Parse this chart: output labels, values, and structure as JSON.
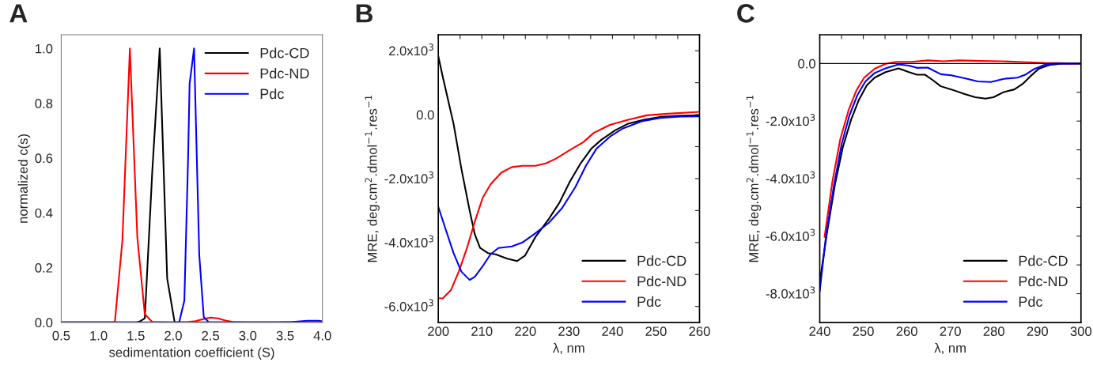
{
  "chart_data": [
    {
      "type": "line",
      "title": "A",
      "xlabel": "sedimentation coefficient (S)",
      "ylabel": "normalized c(s)",
      "xlim": [
        0.5,
        4.0
      ],
      "ylim": [
        0.0,
        1.05
      ],
      "xticks": [
        0.5,
        {
          "value": 1,
          "label": "1.0"
        },
        1.5,
        {
          "value": 2,
          "label": "2.0"
        },
        2.5,
        {
          "value": 3,
          "label": "3.0"
        },
        3.5,
        {
          "value": 4,
          "label": "4.0"
        }
      ],
      "yticks": [
        {
          "value": 0,
          "label": "0.0"
        },
        0.2,
        0.4,
        0.6,
        0.8,
        {
          "value": 1,
          "label": "1.0"
        }
      ],
      "legend": "top right",
      "grid": false,
      "line_style": "solid",
      "marker": "none",
      "series": [
        {
          "name": "Pdc-CD",
          "color": "#000000",
          "x": [
            0.5,
            1.5,
            1.55,
            1.62,
            1.72,
            1.82,
            1.92,
            2.02,
            2.5,
            4.0
          ],
          "values": [
            0,
            0,
            0.003,
            0.015,
            0.55,
            1.0,
            0.16,
            0,
            0,
            0
          ]
        },
        {
          "name": "Pdc-ND",
          "color": "#ff0000",
          "x": [
            0.5,
            1.2,
            1.22,
            1.32,
            1.42,
            1.52,
            1.62,
            1.72,
            2.0,
            2.2,
            2.3,
            2.4,
            2.5,
            2.6,
            2.7,
            2.8,
            3.0,
            4.0
          ],
          "values": [
            0,
            0,
            0.005,
            0.3,
            1.0,
            0.31,
            0.03,
            0.002,
            0,
            0.002,
            0.005,
            0.012,
            0.018,
            0.015,
            0.007,
            0.002,
            0,
            0
          ]
        },
        {
          "name": "Pdc",
          "color": "#0000ff",
          "x": [
            0.5,
            2.08,
            2.15,
            2.2,
            2.22,
            2.28,
            2.35,
            2.41,
            2.48,
            3.4,
            3.6,
            3.8,
            3.95,
            4.0
          ],
          "values": [
            0,
            0,
            0.08,
            0.6,
            0.87,
            1.0,
            0.245,
            0.02,
            0,
            0,
            0.002,
            0.006,
            0.006,
            0.004
          ]
        }
      ]
    },
    {
      "type": "line",
      "title": "B",
      "xlabel": "λ, nm",
      "ylabel": "MRE, deg.cm$^{2}$.dmol$^{−1}$.res$^{−1}$",
      "xlim": [
        200,
        260
      ],
      "ylim": [
        -6500,
        2500
      ],
      "xticks": [
        200,
        {
          "value": 205,
          "label": null
        },
        210,
        {
          "value": 215,
          "label": null
        },
        220,
        {
          "value": 225,
          "label": null
        },
        230,
        {
          "value": 235,
          "label": null
        },
        240,
        {
          "value": 245,
          "label": null
        },
        250,
        {
          "value": 255,
          "label": null
        },
        260
      ],
      "yticks": [
        {
          "value": -6000,
          "label": "-6.0x10$^{3}$"
        },
        {
          "value": -5000,
          "label": null
        },
        {
          "value": -4000,
          "label": "-4.0x10$^{3}$"
        },
        {
          "value": -3000,
          "label": null
        },
        {
          "value": -2000,
          "label": "-2.0x10$^{3}$"
        },
        {
          "value": -1000,
          "label": null
        },
        {
          "value": 0,
          "label": "0.0"
        },
        {
          "value": 1000,
          "label": null
        },
        {
          "value": 2000,
          "label": "2.0x10$^{3}$"
        }
      ],
      "legend": "bottom right",
      "grid": false,
      "line_style": "solid",
      "marker": "none",
      "series": [
        {
          "name": "Pdc-CD",
          "color": "#000000",
          "x": [
            200,
            201,
            203.5,
            205.3,
            207.2,
            208.4,
            209.6,
            211.4,
            213.2,
            215.7,
            218.1,
            219.9,
            222.3,
            225.4,
            227.8,
            230.2,
            232.7,
            235.1,
            237.5,
            240.6,
            243.6,
            247.2,
            250.9,
            255.7,
            260
          ],
          "values": [
            1830,
            1200,
            -280,
            -1690,
            -3000,
            -3750,
            -4170,
            -4330,
            -4370,
            -4500,
            -4580,
            -4410,
            -3830,
            -3260,
            -2760,
            -2100,
            -1520,
            -1070,
            -780,
            -490,
            -280,
            -160,
            -70,
            -30,
            -20
          ]
        },
        {
          "name": "Pdc-ND",
          "color": "#ff0000",
          "x": [
            200,
            201,
            202.9,
            204.7,
            206.6,
            208.4,
            210.2,
            212.0,
            214.5,
            216.9,
            219.3,
            222.3,
            224.8,
            227.2,
            230.2,
            233.3,
            235.7,
            239.4,
            243.6,
            247.9,
            252.7,
            260
          ],
          "values": [
            -5740,
            -5750,
            -5490,
            -4910,
            -4170,
            -3340,
            -2600,
            -2180,
            -1810,
            -1640,
            -1600,
            -1600,
            -1520,
            -1360,
            -1110,
            -860,
            -570,
            -320,
            -160,
            -20,
            30,
            90
          ]
        },
        {
          "name": "Pdc",
          "color": "#0000ff",
          "x": [
            200,
            201.7,
            203.5,
            205.3,
            207.2,
            208.4,
            210.2,
            212.0,
            213.8,
            216.9,
            219.3,
            222.3,
            225.4,
            228.4,
            231.5,
            233.9,
            236.3,
            239.4,
            242.4,
            246.7,
            250.9,
            255.7,
            260
          ],
          "values": [
            -2880,
            -3590,
            -4330,
            -4910,
            -5170,
            -5070,
            -4740,
            -4370,
            -4170,
            -4120,
            -4000,
            -3710,
            -3380,
            -2930,
            -2260,
            -1600,
            -1070,
            -690,
            -430,
            -210,
            -100,
            -60,
            -50
          ]
        }
      ]
    },
    {
      "type": "line",
      "title": "C",
      "xlabel": "λ, nm",
      "ylabel": "MRE, deg.cm$^{2}$.dmol$^{−1}$.res$^{−1}$",
      "xlim": [
        240,
        300
      ],
      "ylim": [
        -9000,
        1000
      ],
      "xticks": [
        240,
        {
          "value": 245,
          "label": null
        },
        250,
        {
          "value": 255,
          "label": null
        },
        260,
        {
          "value": 265,
          "label": null
        },
        270,
        {
          "value": 275,
          "label": null
        },
        280,
        {
          "value": 285,
          "label": null
        },
        290,
        {
          "value": 295,
          "label": null
        },
        300
      ],
      "yticks": [
        {
          "value": -8000,
          "label": "-8.0x10$^{3}$"
        },
        {
          "value": -7000,
          "label": null
        },
        {
          "value": -6000,
          "label": "-6.0x10$^{3}$"
        },
        {
          "value": -5000,
          "label": null
        },
        {
          "value": -4000,
          "label": "-4.0x10$^{3}$"
        },
        {
          "value": -3000,
          "label": null
        },
        {
          "value": -2000,
          "label": "-2.0x10$^{3}$"
        },
        {
          "value": -1000,
          "label": null
        },
        {
          "value": 0,
          "label": "0.0"
        }
      ],
      "legend": "bottom right",
      "grid": false,
      "line_style": "solid",
      "marker": "none",
      "ref_lines": [
        {
          "axis": "y",
          "value": 0,
          "color": "#000000"
        }
      ],
      "series": [
        {
          "name": "Pdc-CD",
          "color": "#000000",
          "x": [
            240,
            241.7,
            243.5,
            245.3,
            247.2,
            249.0,
            250.8,
            252.6,
            255.1,
            258.1,
            260.5,
            262.3,
            264.2,
            266.0,
            267.8,
            270.2,
            273.3,
            275.7,
            278.1,
            279.9,
            282.3,
            284.7,
            286.6,
            288.4,
            290.3,
            292.7,
            295.1,
            300
          ],
          "values": [
            -7590,
            -5850,
            -4200,
            -2910,
            -1950,
            -1260,
            -760,
            -490,
            -300,
            -170,
            -300,
            -390,
            -390,
            -580,
            -790,
            -900,
            -1060,
            -1170,
            -1220,
            -1170,
            -990,
            -900,
            -710,
            -440,
            -180,
            -50,
            -10,
            0
          ]
        },
        {
          "name": "Pdc-ND",
          "color": "#ff0000",
          "x": [
            241.1,
            242.9,
            244.7,
            246.6,
            248.4,
            250.2,
            252.6,
            255.1,
            257.5,
            261.1,
            264.8,
            268.4,
            272.0,
            276.9,
            281.8,
            286.6,
            291.5,
            300
          ],
          "values": [
            -6030,
            -4110,
            -2640,
            -1630,
            -940,
            -490,
            -180,
            -10,
            60,
            60,
            110,
            80,
            110,
            90,
            80,
            50,
            20,
            0
          ]
        },
        {
          "name": "Pdc",
          "color": "#0000ff",
          "x": [
            240,
            241.4,
            243.2,
            245.0,
            246.8,
            248.7,
            250.5,
            252.6,
            255.1,
            258.1,
            260.5,
            262.3,
            264.8,
            267.8,
            270.2,
            273.3,
            276.3,
            279.3,
            282.3,
            285.4,
            287.2,
            289.0,
            291.5,
            293.9,
            300
          ],
          "values": [
            -7910,
            -6030,
            -4290,
            -2820,
            -1810,
            -1080,
            -620,
            -330,
            -170,
            -30,
            -70,
            -150,
            -140,
            -370,
            -410,
            -510,
            -620,
            -640,
            -530,
            -490,
            -390,
            -210,
            -50,
            0,
            0
          ]
        }
      ]
    }
  ]
}
